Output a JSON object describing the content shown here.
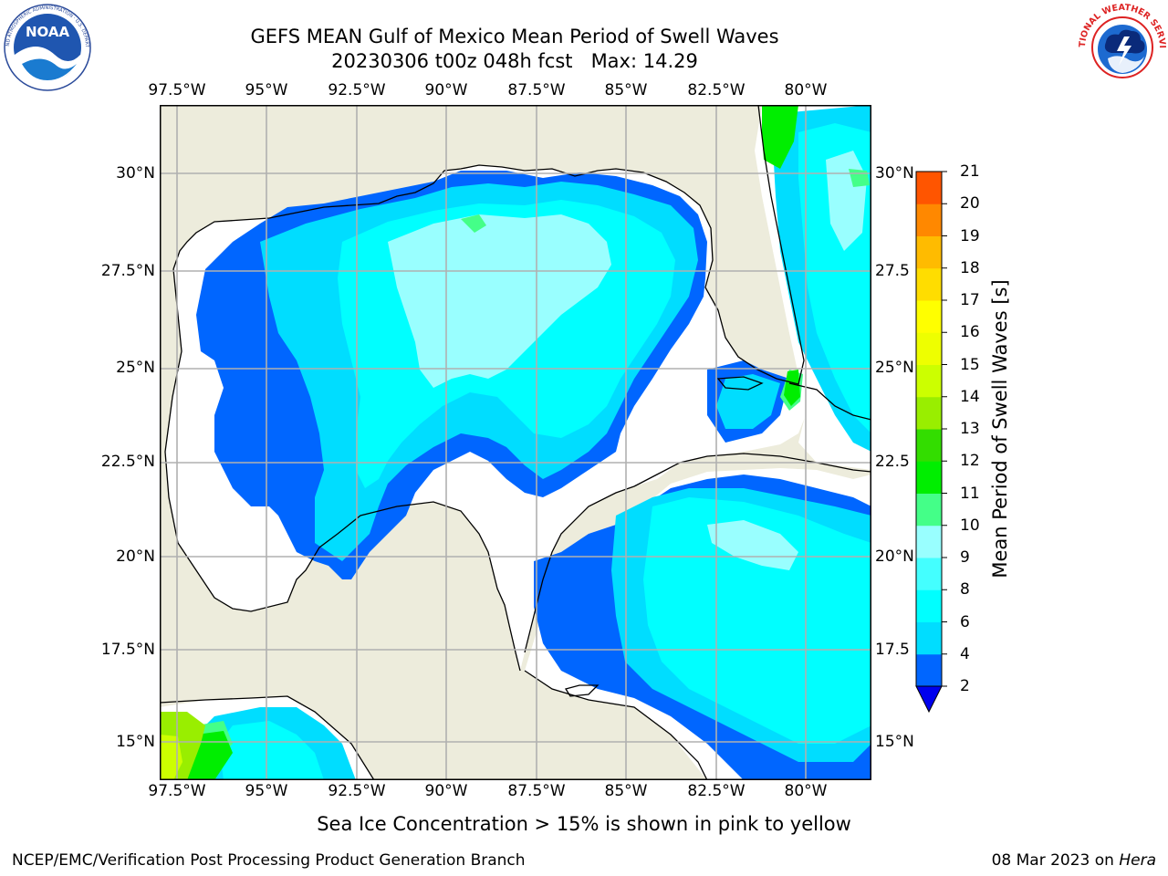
{
  "title": {
    "line1": "GEFS MEAN Gulf of Mexico Mean Period of Swell Waves",
    "line2": "20230306 t00z 048h fcst   Max: 14.29"
  },
  "logos": {
    "left": {
      "name": "noaa-logo",
      "text": "NOAA",
      "ring_text": "NATIONAL OCEANIC AND ATMOSPHERIC ADMINISTRATION · U.S. DEPARTMENT OF COMMERCE"
    },
    "right": {
      "name": "nws-logo",
      "ring_text": "NATIONAL WEATHER SERVICE"
    }
  },
  "map": {
    "lon_labels": [
      "97.5°W",
      "95°W",
      "92.5°W",
      "90°W",
      "87.5°W",
      "85°W",
      "82.5°W",
      "80°W"
    ],
    "lat_labels_left": [
      "30°N",
      "27.5°N",
      "25°N",
      "22.5°N",
      "20°N",
      "17.5°N",
      "15°N"
    ],
    "lat_labels_right": [
      "30°N",
      "27.5",
      "25°N",
      "22.5",
      "20°N",
      "17.5",
      "15°N"
    ],
    "colors": {
      "land": "#edecdc",
      "nodata": "#ffffff",
      "grid": "#b0b0b0",
      "coast": "#000000"
    }
  },
  "colorbar": {
    "label": "Mean Period of Swell Waves [s]",
    "ticks": [
      "2",
      "4",
      "6",
      "8",
      "9",
      "10",
      "11",
      "12",
      "13",
      "14",
      "15",
      "16",
      "17",
      "18",
      "19",
      "20",
      "21"
    ],
    "levels": [
      2,
      4,
      6,
      8,
      9,
      10,
      11,
      12,
      13,
      14,
      15,
      16,
      17,
      18,
      19,
      20,
      21
    ],
    "under_color": "#0000ee",
    "colors": [
      "#0066ff",
      "#00ddff",
      "#00ffff",
      "#44ffff",
      "#99ffff",
      "#44ff88",
      "#00ee00",
      "#33dd00",
      "#99ee00",
      "#ccff00",
      "#eeff00",
      "#ffff00",
      "#ffdd00",
      "#ffbb00",
      "#ff8800",
      "#ff5500",
      "#ff2200",
      "#ff0000"
    ]
  },
  "note": "Sea Ice Concentration > 15% is shown in pink to yellow",
  "footer": {
    "left": "NCEP/EMC/Verification Post Processing Product Generation Branch",
    "right_date": "08 Mar 2023 on ",
    "right_machine": "Hera"
  }
}
